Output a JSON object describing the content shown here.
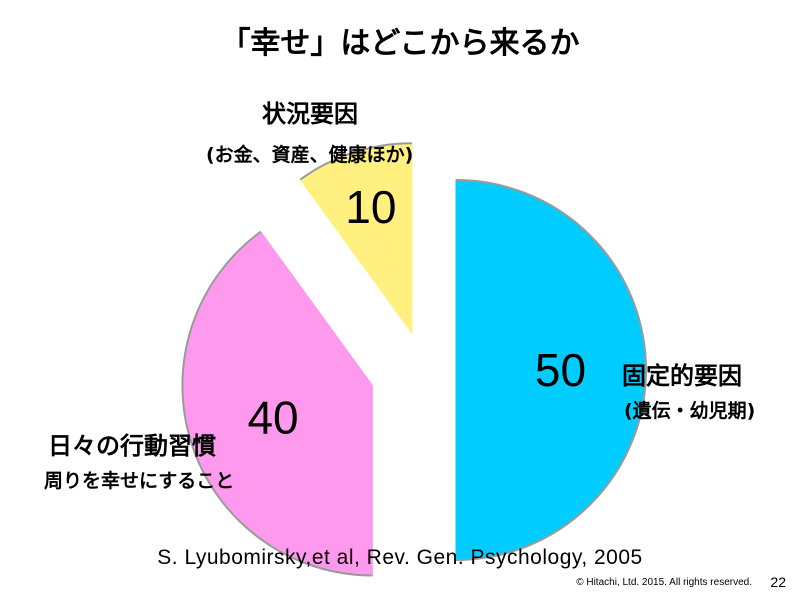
{
  "title": "「幸せ」はどこから来るか",
  "chart_data": {
    "type": "pie",
    "title": "「幸せ」はどこから来るか",
    "slices": [
      {
        "value": 50,
        "label": "固定的要因",
        "sublabel": "(遺伝・幼児期)",
        "color": "#00CCFF"
      },
      {
        "value": 40,
        "label": "日々の行動習慣",
        "sublabel": "周りを幸せにすること",
        "color": "#FF99EE"
      },
      {
        "value": 10,
        "label": "状況要因",
        "sublabel": "(お金、資産、健康ほか)",
        "color": "#FFF080"
      }
    ]
  },
  "citation": "S. Lyubomirsky,et al, Rev. Gen. Psychology, 2005",
  "copyright": "© Hitachi, Ltd. 2015. All rights reserved.",
  "page_number": "22"
}
